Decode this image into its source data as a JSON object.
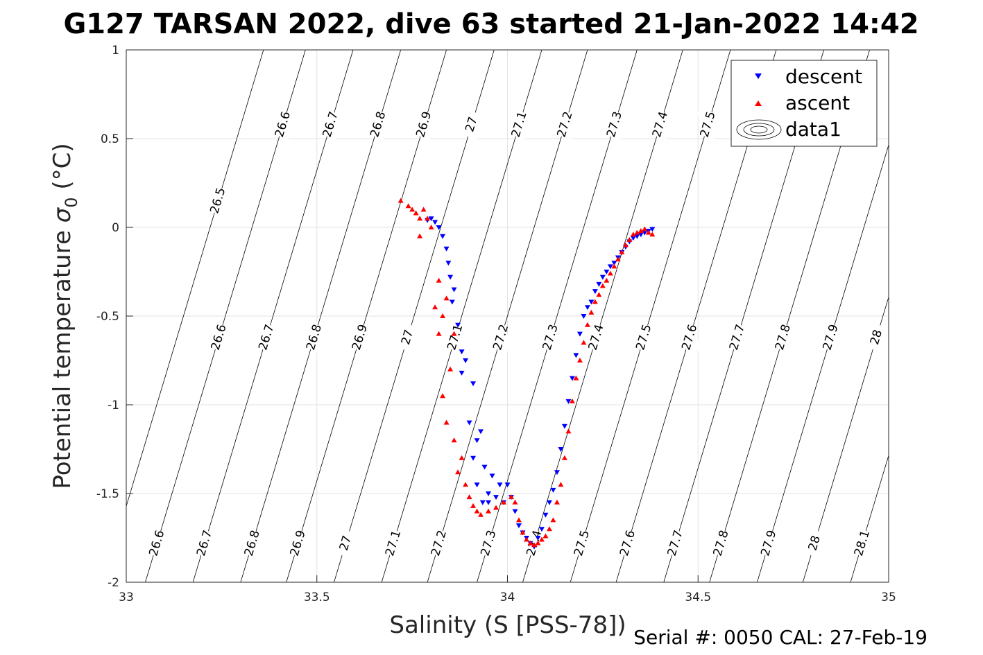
{
  "chart_data": {
    "type": "scatter",
    "title": "G127 TARSAN 2022, dive 63 started 21-Jan-2022 14:42",
    "xlabel": "Salinity (S [PSS-78])",
    "ylabel_main": "Potential temperature ",
    "ylabel_symbol": "σ",
    "ylabel_sub": "0",
    "ylabel_unit": " (°C)",
    "xlim": [
      33,
      35
    ],
    "ylim": [
      -2,
      1
    ],
    "x_ticks": [
      33,
      33.5,
      34,
      34.5,
      35
    ],
    "x_tick_labels": [
      "33",
      "33.5",
      "34",
      "34.5",
      "35"
    ],
    "y_ticks": [
      -2,
      -1.5,
      -1,
      -0.5,
      0,
      0.5,
      1
    ],
    "y_tick_labels": [
      "-2",
      "-1.5",
      "-1",
      "-0.5",
      "0",
      "0.5",
      "1"
    ],
    "grid": true,
    "legend_position": "top-right",
    "footer": "Serial #: 0050  CAL: 27-Feb-19",
    "density_contours": {
      "levels": [
        26.5,
        26.6,
        26.7,
        26.8,
        26.9,
        27.0,
        27.1,
        27.2,
        27.3,
        27.4,
        27.5,
        27.6,
        27.7,
        27.8,
        27.9,
        28.0,
        28.1
      ],
      "level_labels": [
        "26.5",
        "26.6",
        "26.7",
        "26.8",
        "26.9",
        "27",
        "27.1",
        "27.2",
        "27.3",
        "27.4",
        "27.5",
        "27.6",
        "27.7",
        "27.8",
        "27.9",
        "28",
        "28.1"
      ],
      "salinity_at_t_minus2": [
        32.94,
        33.05,
        33.175,
        33.3,
        33.42,
        33.545,
        33.67,
        33.79,
        33.92,
        34.04,
        34.165,
        34.285,
        34.41,
        34.53,
        34.655,
        34.775,
        34.9
      ],
      "dS_dT": 0.14,
      "label_rows": [
        {
          "t": 0.58,
          "levels": [
            "26.6",
            "26.7",
            "26.8",
            "26.9",
            "27",
            "27.1",
            "27.2",
            "27.3",
            "27.4",
            "27.5",
            "27.6",
            "27.7"
          ]
        },
        {
          "t": -0.62,
          "levels": [
            "26.6",
            "26.7",
            "26.8",
            "26.9",
            "27",
            "27.1",
            "27.2",
            "27.3",
            "27.4",
            "27.5",
            "27.6",
            "27.7",
            "27.8",
            "27.9",
            "28",
            "28.1"
          ]
        },
        {
          "t": -1.78,
          "levels": [
            "26.6",
            "26.7",
            "26.8",
            "26.9",
            "27",
            "27.1",
            "27.2",
            "27.3",
            "27.4",
            "27.5",
            "27.6",
            "27.7",
            "27.8",
            "27.9",
            "28",
            "28.1"
          ]
        },
        {
          "t": 0.15,
          "levels": [
            "26.5"
          ]
        }
      ]
    },
    "series": [
      {
        "name": "descent",
        "color": "#0000ff",
        "marker": "triangle-down",
        "x": [
          33.79,
          33.8,
          33.81,
          33.82,
          33.83,
          33.84,
          33.845,
          33.85,
          33.86,
          33.855,
          33.87,
          33.88,
          33.89,
          33.88,
          33.91,
          33.9,
          33.93,
          33.92,
          33.91,
          33.94,
          33.92,
          33.935,
          33.95,
          33.96,
          33.98,
          33.97,
          33.95,
          33.99,
          34.0,
          34.01,
          34.02,
          34.03,
          34.04,
          34.05,
          34.06,
          34.07,
          34.08,
          34.09,
          34.1,
          34.11,
          34.12,
          34.13,
          34.14,
          34.15,
          34.16,
          34.17,
          34.18,
          34.19,
          34.2,
          34.21,
          34.22,
          34.23,
          34.24,
          34.25,
          34.26,
          34.27,
          34.28,
          34.29,
          34.3,
          34.31,
          34.32,
          34.33,
          34.34,
          34.35,
          34.36,
          34.37,
          34.38
        ],
        "y": [
          0.04,
          0.05,
          0.03,
          0.0,
          -0.05,
          -0.12,
          -0.2,
          -0.28,
          -0.35,
          -0.42,
          -0.55,
          -0.7,
          -0.75,
          -0.82,
          -0.88,
          -1.1,
          -1.15,
          -1.2,
          -1.3,
          -1.35,
          -1.45,
          -1.55,
          -1.5,
          -1.4,
          -1.45,
          -1.52,
          -1.55,
          -1.55,
          -1.45,
          -1.52,
          -1.6,
          -1.68,
          -1.72,
          -1.75,
          -1.78,
          -1.8,
          -1.75,
          -1.7,
          -1.62,
          -1.55,
          -1.48,
          -1.38,
          -1.25,
          -1.12,
          -0.98,
          -0.85,
          -0.72,
          -0.6,
          -0.5,
          -0.45,
          -0.42,
          -0.36,
          -0.32,
          -0.28,
          -0.25,
          -0.22,
          -0.2,
          -0.17,
          -0.14,
          -0.11,
          -0.08,
          -0.06,
          -0.05,
          -0.04,
          -0.03,
          -0.02,
          -0.01
        ]
      },
      {
        "name": "ascent",
        "color": "#ff0000",
        "marker": "triangle-up",
        "x": [
          33.72,
          33.74,
          33.75,
          33.76,
          33.77,
          33.8,
          33.82,
          33.84,
          33.83,
          33.81,
          33.82,
          33.85,
          33.83,
          33.84,
          33.86,
          33.88,
          33.87,
          33.89,
          33.9,
          33.91,
          33.92,
          33.93,
          33.95,
          33.97,
          33.99,
          34.01,
          34.02,
          34.03,
          34.04,
          34.05,
          34.06,
          34.07,
          34.08,
          34.09,
          34.1,
          34.11,
          34.12,
          34.13,
          34.14,
          34.15,
          34.16,
          34.17,
          34.18,
          34.19,
          34.2,
          34.21,
          34.22,
          34.23,
          34.24,
          34.25,
          34.26,
          34.27,
          34.28,
          34.29,
          34.3,
          34.31,
          34.32,
          34.33,
          34.34,
          34.35,
          34.36,
          34.37,
          34.38,
          33.86,
          33.79,
          33.78,
          33.77
        ],
        "y": [
          0.15,
          0.12,
          0.1,
          0.08,
          0.05,
          0.0,
          -0.3,
          -0.4,
          -0.5,
          -0.45,
          -0.6,
          -0.8,
          -0.95,
          -1.1,
          -1.2,
          -1.3,
          -1.38,
          -1.45,
          -1.52,
          -1.57,
          -1.6,
          -1.62,
          -1.6,
          -1.58,
          -1.55,
          -1.52,
          -1.55,
          -1.65,
          -1.72,
          -1.76,
          -1.78,
          -1.79,
          -1.78,
          -1.76,
          -1.74,
          -1.7,
          -1.65,
          -1.55,
          -1.45,
          -1.3,
          -1.15,
          -0.98,
          -0.85,
          -0.75,
          -0.65,
          -0.55,
          -0.48,
          -0.42,
          -0.38,
          -0.33,
          -0.3,
          -0.26,
          -0.22,
          -0.18,
          -0.14,
          -0.1,
          -0.07,
          -0.04,
          -0.03,
          -0.02,
          -0.01,
          -0.03,
          -0.04,
          -0.6,
          0.05,
          0.1,
          -0.05
        ]
      }
    ],
    "legend": [
      {
        "label": "descent",
        "symbol": "triangle-down",
        "color": "#0000ff"
      },
      {
        "label": "ascent",
        "symbol": "triangle-up",
        "color": "#ff0000"
      },
      {
        "label": "data1",
        "symbol": "contour-ellipses",
        "color": "#000000"
      }
    ]
  }
}
